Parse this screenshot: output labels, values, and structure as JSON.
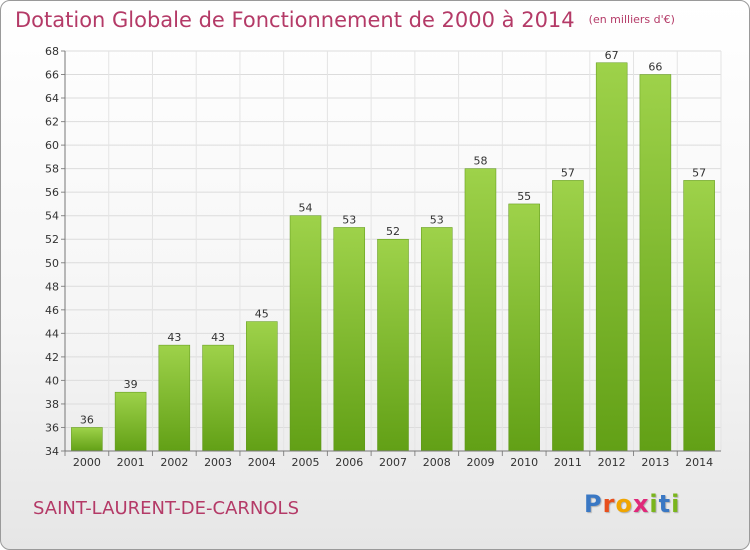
{
  "title": "Dotation Globale de Fonctionnement de 2000 à 2014",
  "unit_note": "(en milliers d'€)",
  "commune": "SAINT-LAURENT-DE-CARNOLS",
  "logo": {
    "letters": [
      "P",
      "r",
      "o",
      "x",
      "i",
      "t",
      "i"
    ],
    "colors": [
      "#3a78c4",
      "#e84f1c",
      "#f0a500",
      "#e0287a",
      "#7ab51d",
      "#3a78c4",
      "#7ab51d"
    ]
  },
  "chart_data": {
    "type": "bar",
    "categories": [
      "2000",
      "2001",
      "2002",
      "2003",
      "2004",
      "2005",
      "2006",
      "2007",
      "2008",
      "2009",
      "2010",
      "2011",
      "2012",
      "2013",
      "2014"
    ],
    "values": [
      36,
      39,
      43,
      43,
      45,
      54,
      53,
      52,
      53,
      58,
      55,
      57,
      67,
      66,
      57
    ],
    "ylim": [
      34,
      68
    ],
    "yticks": [
      34,
      36,
      38,
      40,
      42,
      44,
      46,
      48,
      50,
      52,
      54,
      56,
      58,
      60,
      62,
      64,
      66,
      68
    ],
    "grid": true,
    "bar_color": "#7cb82f"
  }
}
